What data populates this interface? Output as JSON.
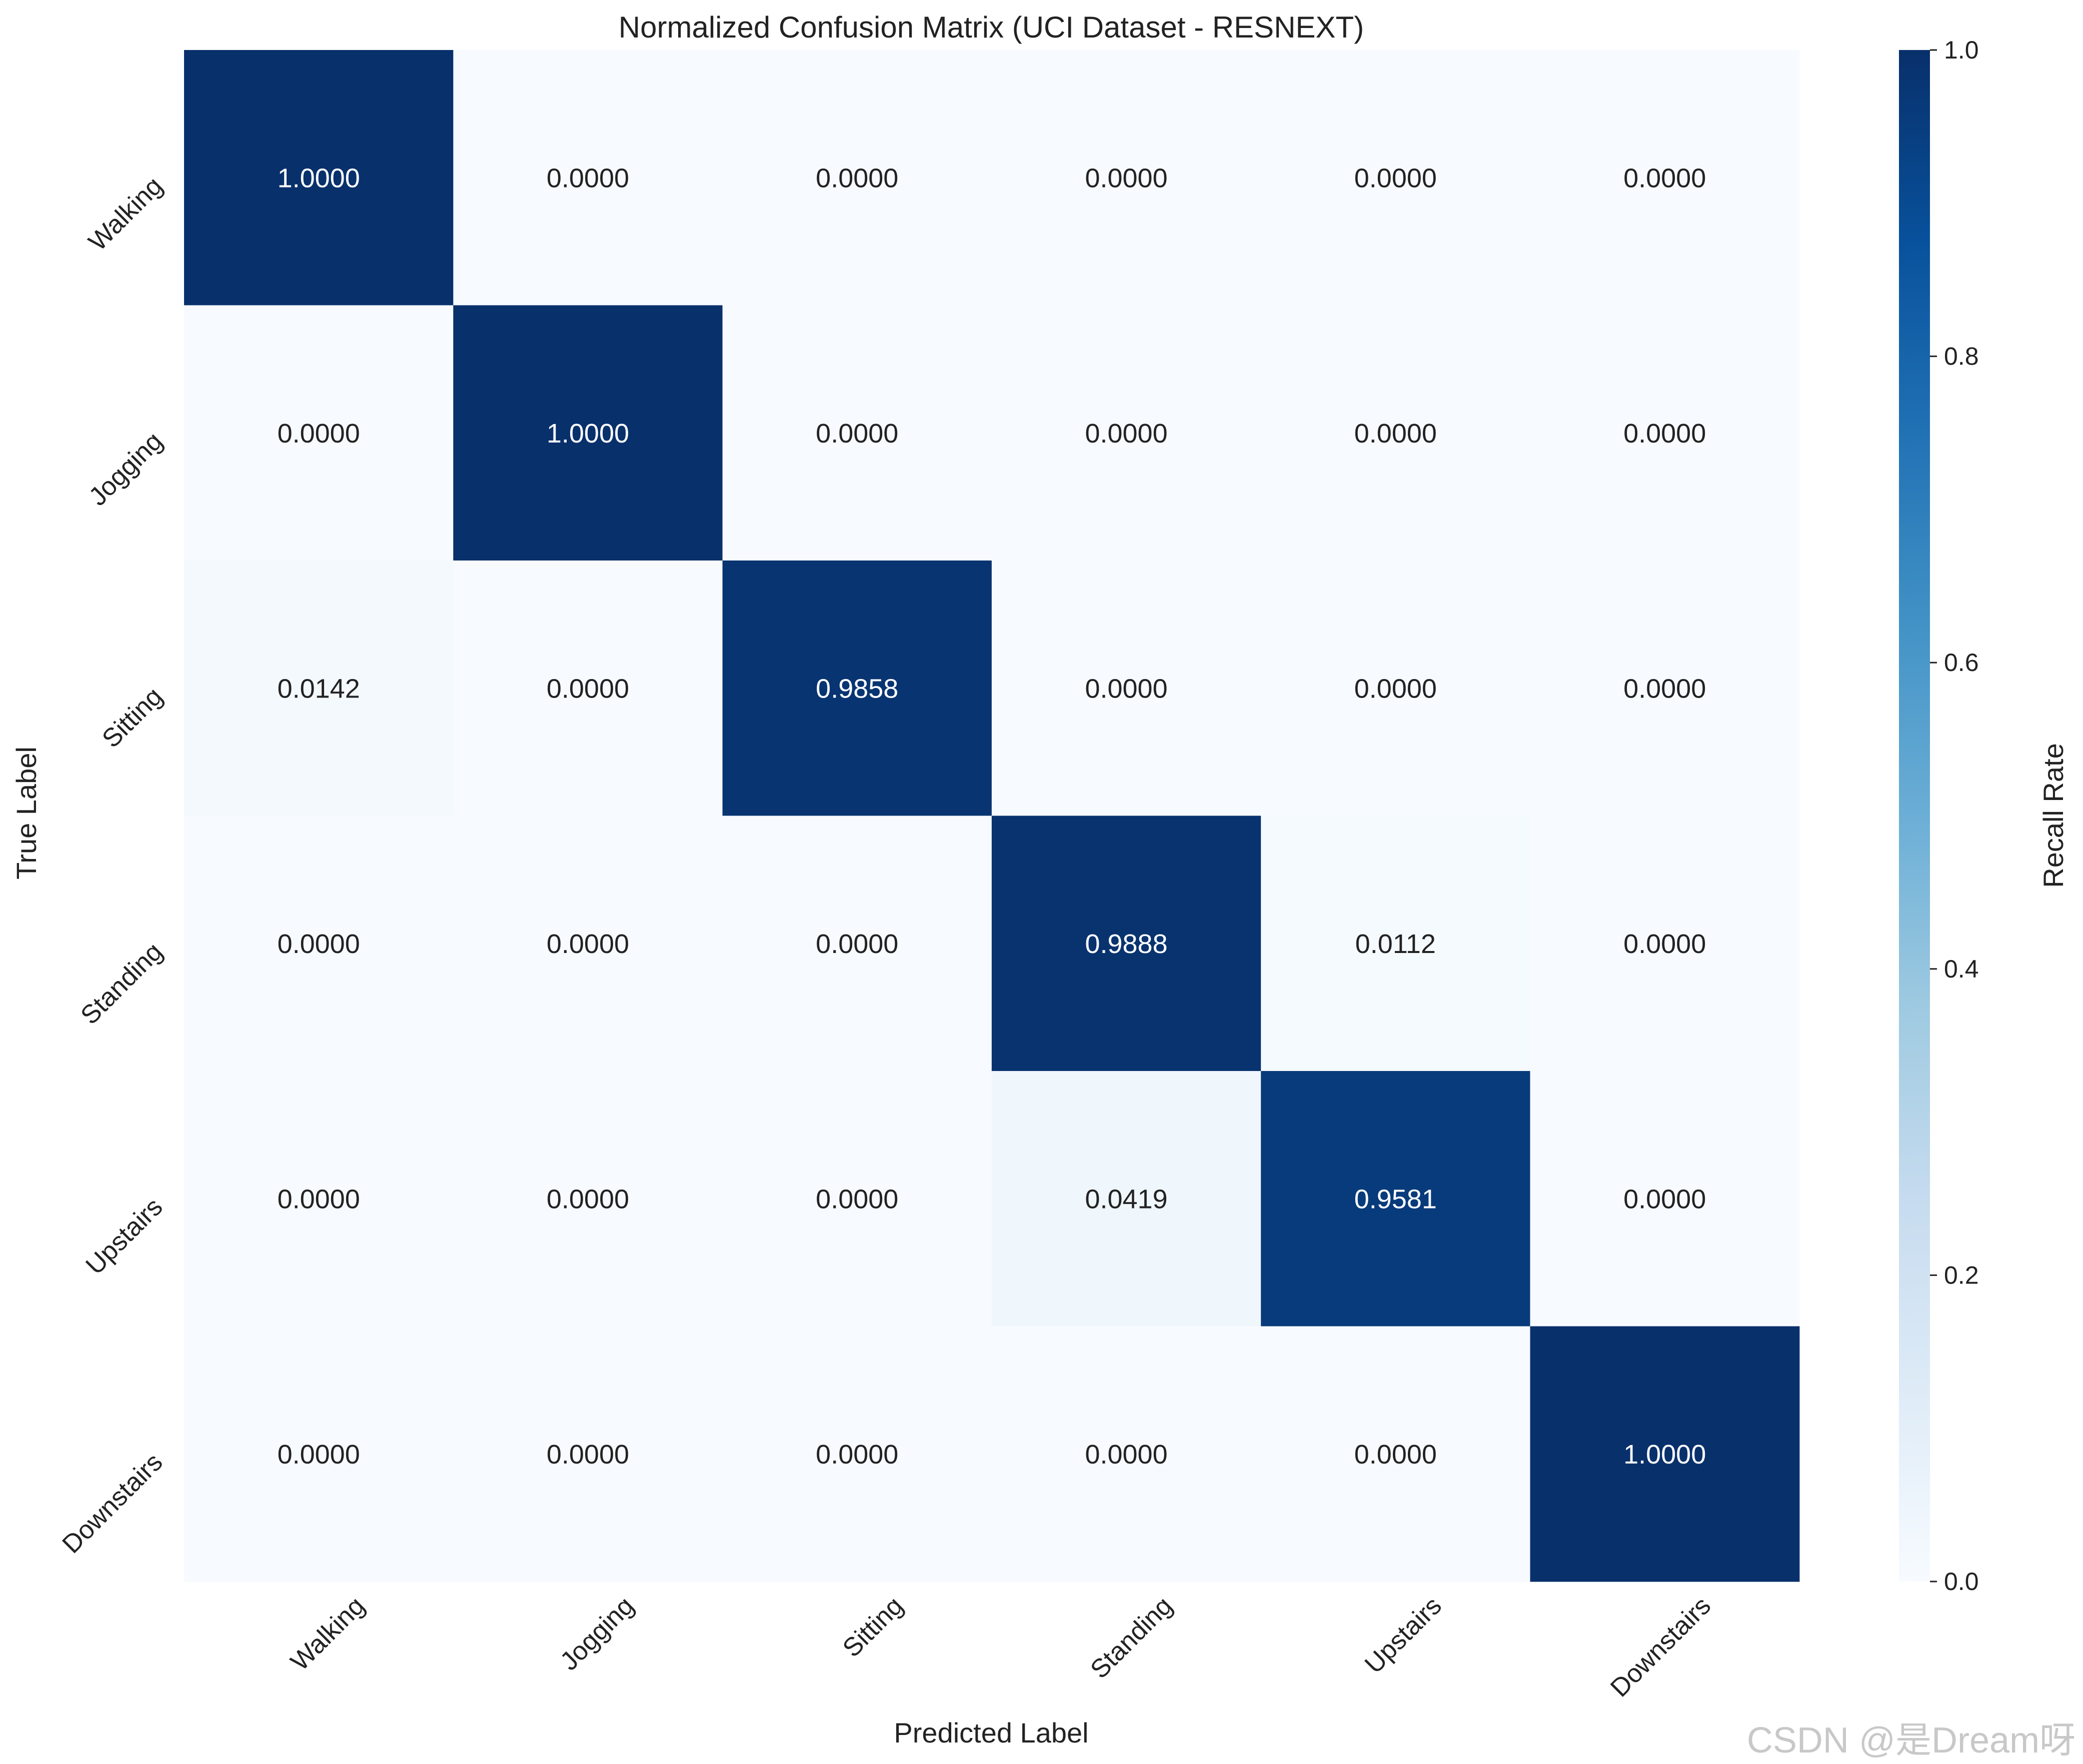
{
  "chart_data": {
    "type": "heatmap",
    "title": "Normalized Confusion Matrix (UCI Dataset - RESNEXT)",
    "xlabel": "Predicted Label",
    "ylabel": "True Label",
    "x_categories": [
      "Walking",
      "Jogging",
      "Sitting",
      "Standing",
      "Upstairs",
      "Downstairs"
    ],
    "y_categories": [
      "Walking",
      "Jogging",
      "Sitting",
      "Standing",
      "Upstairs",
      "Downstairs"
    ],
    "values": [
      [
        1.0,
        0.0,
        0.0,
        0.0,
        0.0,
        0.0
      ],
      [
        0.0,
        1.0,
        0.0,
        0.0,
        0.0,
        0.0
      ],
      [
        0.0142,
        0.0,
        0.9858,
        0.0,
        0.0,
        0.0
      ],
      [
        0.0,
        0.0,
        0.0,
        0.9888,
        0.0112,
        0.0
      ],
      [
        0.0,
        0.0,
        0.0,
        0.0419,
        0.9581,
        0.0
      ],
      [
        0.0,
        0.0,
        0.0,
        0.0,
        0.0,
        1.0
      ]
    ],
    "value_format": "0.0000",
    "colormap": "Blues",
    "colorbar": {
      "label": "Recall Rate",
      "range": [
        0.0,
        1.0
      ],
      "ticks": [
        0.0,
        0.2,
        0.4,
        0.6,
        0.8,
        1.0
      ],
      "tick_labels": [
        "0.0",
        "0.2",
        "0.4",
        "0.6",
        "0.8",
        "1.0"
      ]
    },
    "grid": false
  },
  "watermark": "CSDN @是Dream呀",
  "colors": {
    "text_dark": "#222222",
    "text_light": "#ffffff",
    "watermark": "#c8c8c8"
  }
}
